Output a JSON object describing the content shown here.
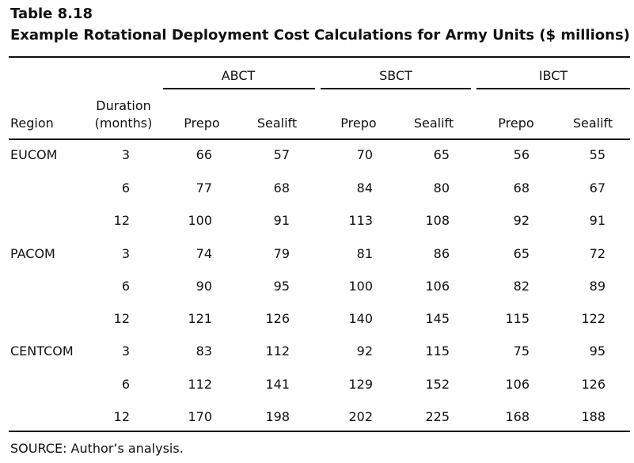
{
  "table_label": "Table 8.18",
  "title": "Example Rotational Deployment Cost Calculations for Army Units ($ millions)",
  "groups": [
    "ABCT",
    "SBCT",
    "IBCT"
  ],
  "col_headers": {
    "region": "Region",
    "duration_line1": "Duration",
    "duration_line2": "(months)",
    "sub": [
      "Prepo",
      "Sealift",
      "Prepo",
      "Sealift",
      "Prepo",
      "Sealift"
    ]
  },
  "rows": [
    {
      "region": "EUCOM",
      "duration": "3",
      "values": [
        "66",
        "57",
        "70",
        "65",
        "56",
        "55"
      ]
    },
    {
      "region": "",
      "duration": "6",
      "values": [
        "77",
        "68",
        "84",
        "80",
        "68",
        "67"
      ]
    },
    {
      "region": "",
      "duration": "12",
      "values": [
        "100",
        "91",
        "113",
        "108",
        "92",
        "91"
      ]
    },
    {
      "region": "PACOM",
      "duration": "3",
      "values": [
        "74",
        "79",
        "81",
        "86",
        "65",
        "72"
      ]
    },
    {
      "region": "",
      "duration": "6",
      "values": [
        "90",
        "95",
        "100",
        "106",
        "82",
        "89"
      ]
    },
    {
      "region": "",
      "duration": "12",
      "values": [
        "121",
        "126",
        "140",
        "145",
        "115",
        "122"
      ]
    },
    {
      "region": "CENTCOM",
      "duration": "3",
      "values": [
        "83",
        "112",
        "92",
        "115",
        "75",
        "95"
      ]
    },
    {
      "region": "",
      "duration": "6",
      "values": [
        "112",
        "141",
        "129",
        "152",
        "106",
        "126"
      ]
    },
    {
      "region": "",
      "duration": "12",
      "values": [
        "170",
        "198",
        "202",
        "225",
        "168",
        "188"
      ]
    }
  ],
  "source": "SOURCE: Author’s analysis."
}
